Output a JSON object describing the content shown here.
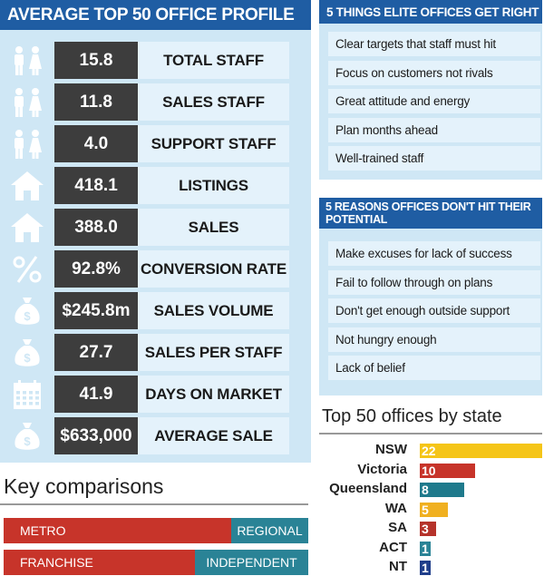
{
  "profile": {
    "title": "AVERAGE TOP 50 OFFICE PROFILE",
    "stats": [
      {
        "value": "15.8",
        "label": "TOTAL STAFF",
        "icon": "people-icon"
      },
      {
        "value": "11.8",
        "label": "SALES STAFF",
        "icon": "people-icon"
      },
      {
        "value": "4.0",
        "label": "SUPPORT STAFF",
        "icon": "people-icon"
      },
      {
        "value": "418.1",
        "label": "LISTINGS",
        "icon": "house-icon"
      },
      {
        "value": "388.0",
        "label": "SALES",
        "icon": "house-icon"
      },
      {
        "value": "92.8%",
        "label": "CONVERSION RATE",
        "icon": "percent-icon"
      },
      {
        "value": "$245.8m",
        "label": "SALES VOLUME",
        "icon": "money-bag-icon"
      },
      {
        "value": "27.7",
        "label": "SALES PER STAFF",
        "icon": "money-bag-icon"
      },
      {
        "value": "41.9",
        "label": "DAYS ON MARKET",
        "icon": "calendar-icon"
      },
      {
        "value": "$633,000",
        "label": "AVERAGE SALE",
        "icon": "money-bag-icon"
      }
    ]
  },
  "elite": {
    "title": "5 THINGS ELITE OFFICES GET RIGHT",
    "items": [
      "Clear targets that staff must hit",
      "Focus on customers not rivals",
      "Great attitude and energy",
      "Plan months ahead",
      "Well-trained staff"
    ]
  },
  "reasons": {
    "title_line1": "5 REASONS OFFICES DON'T HIT THEIR",
    "title_line2": "POTENTIAL",
    "items": [
      "Make excuses for lack of success",
      "Fail to follow through on plans",
      "Don't get enough outside support",
      "Not hungry enough",
      "Lack of belief"
    ]
  },
  "key_comparisons": {
    "title": "Key comparisons",
    "row1": {
      "left": "METRO",
      "right": "REGIONAL"
    },
    "row2": {
      "left": "FRANCHISE",
      "right": "INDEPENDENT"
    }
  },
  "colors": {
    "metro": "#c7342a",
    "regional": "#2a8396",
    "franchise": "#c7342a",
    "independent": "#2a8396",
    "panel_header": "#1f5da3",
    "panel_bg": "#cfe7f5",
    "value_box": "#3d3d3d"
  },
  "chart_data": {
    "type": "bar",
    "orientation": "horizontal",
    "title": "Top 50 offices by state",
    "categories": [
      "NSW",
      "Victoria",
      "Queensland",
      "WA",
      "SA",
      "ACT",
      "NT"
    ],
    "values": [
      22,
      10,
      8,
      5,
      3,
      1,
      1
    ],
    "colors": [
      "#f5c518",
      "#c7342a",
      "#1f7a8c",
      "#f0b020",
      "#b5332b",
      "#2a8396",
      "#1f3e8a"
    ],
    "data_labels": true,
    "grid": false
  }
}
